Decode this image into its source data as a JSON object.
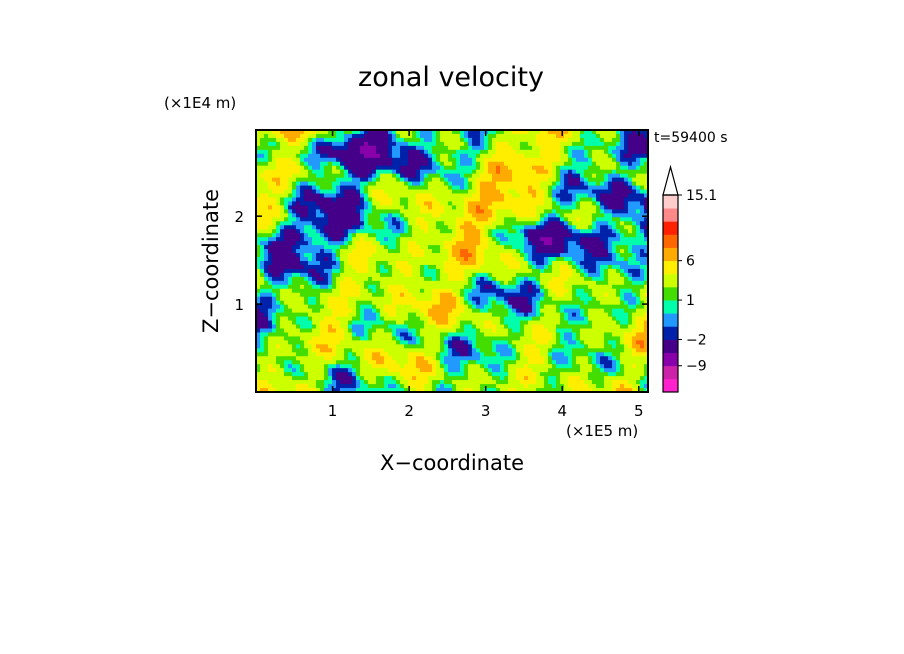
{
  "chart_data": {
    "type": "heatmap",
    "title": "zonal velocity",
    "xlabel": "X−coordinate",
    "ylabel": "Z−coordinate",
    "x_multiplier": "(×1E5 m)",
    "y_multiplier": "(×1E4 m)",
    "time_label": "t=59400 s",
    "xlim": [
      0,
      5.12
    ],
    "ylim": [
      0,
      2.98
    ],
    "x_ticks": [
      1,
      2,
      3,
      4,
      5
    ],
    "x_tick_labels": [
      "1",
      "2",
      "3",
      "4",
      "5"
    ],
    "y_ticks": [
      1,
      2
    ],
    "y_tick_labels": [
      "1",
      "2"
    ],
    "colorbar": {
      "levels_ascending": [
        -15,
        -12,
        -9,
        -6,
        -2,
        -1,
        0,
        1,
        2,
        4,
        6,
        8,
        10,
        12,
        15.1
      ],
      "colors_ascending": [
        "#ff22cc",
        "#cc22aa",
        "#8800aa",
        "#440088",
        "#0022aa",
        "#2299ff",
        "#00ffaa",
        "#44dd00",
        "#ccff00",
        "#ffee00",
        "#ffaa00",
        "#ff6600",
        "#ff2200",
        "#ff8888",
        "#ffcccc"
      ],
      "tick_labels": [
        {
          "value": 15.1,
          "label": "15.1"
        },
        {
          "value": 6,
          "label": "6"
        },
        {
          "value": 1,
          "label": "1"
        },
        {
          "value": -2,
          "label": "−2"
        },
        {
          "value": -9,
          "label": "−9"
        }
      ],
      "extend": "max"
    }
  }
}
